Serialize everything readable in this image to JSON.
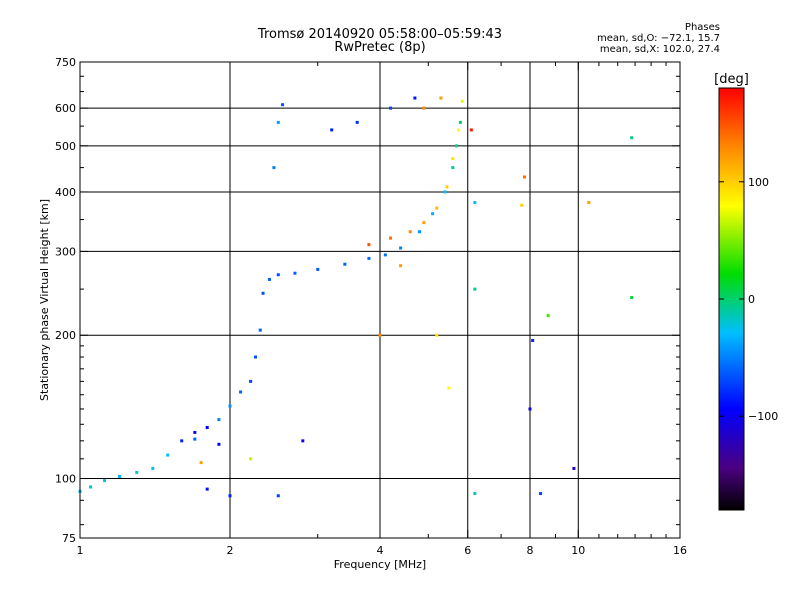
{
  "header": {
    "title": "Tromsø 20140920 05:58:00–05:59:43",
    "subtitle": "RwPretec (8p)"
  },
  "stats": {
    "heading": "Phases",
    "line_o": "mean, sd,O: −72.1, 15.7",
    "line_x": "mean, sd,X: 102.0, 27.4"
  },
  "colorbar": {
    "unit_label": "[deg]",
    "min": -180,
    "max": 180,
    "ticks": [
      {
        "value": 100,
        "label": "100"
      },
      {
        "value": 0,
        "label": "0"
      },
      {
        "value": -100,
        "label": "−100"
      }
    ]
  },
  "chart_data": {
    "type": "scatter",
    "xlabel": "Frequency [MHz]",
    "ylabel": "Stationary phase Virtual Height [km]",
    "xscale": "log",
    "yscale": "log",
    "xlim": [
      1,
      16
    ],
    "ylim": [
      75,
      750
    ],
    "xticks": [
      {
        "value": 1,
        "label": "1"
      },
      {
        "value": 2,
        "label": "2"
      },
      {
        "value": 4,
        "label": "4"
      },
      {
        "value": 6,
        "label": "6"
      },
      {
        "value": 8,
        "label": "8"
      },
      {
        "value": 10,
        "label": "10"
      },
      {
        "value": 16,
        "label": "16"
      }
    ],
    "yticks": [
      {
        "value": 75,
        "label": "75"
      },
      {
        "value": 100,
        "label": "100"
      },
      {
        "value": 200,
        "label": "200"
      },
      {
        "value": 300,
        "label": "300"
      },
      {
        "value": 400,
        "label": "400"
      },
      {
        "value": 500,
        "label": "500"
      },
      {
        "value": 600,
        "label": "600"
      },
      {
        "value": 750,
        "label": "750"
      }
    ],
    "grid": true,
    "color_dimension": "phase [deg]",
    "series": [
      {
        "mode": "O",
        "points": [
          [
            1.0,
            94,
            -40
          ],
          [
            1.05,
            96,
            -30
          ],
          [
            1.12,
            99,
            -35
          ],
          [
            1.2,
            101,
            -45
          ],
          [
            1.3,
            103,
            -30
          ],
          [
            1.4,
            105,
            -40
          ],
          [
            1.5,
            112,
            -40
          ],
          [
            1.6,
            120,
            -90
          ],
          [
            1.7,
            121,
            -70
          ],
          [
            1.8,
            128,
            -100
          ],
          [
            1.9,
            133,
            -60
          ],
          [
            2.0,
            142,
            -55
          ],
          [
            2.1,
            152,
            -70
          ],
          [
            2.2,
            160,
            -80
          ],
          [
            2.25,
            180,
            -75
          ],
          [
            2.3,
            205,
            -70
          ],
          [
            2.33,
            245,
            -75
          ],
          [
            2.4,
            262,
            -70
          ],
          [
            2.5,
            268,
            -75
          ],
          [
            2.7,
            270,
            -70
          ],
          [
            3.0,
            275,
            -72
          ],
          [
            3.4,
            282,
            -70
          ],
          [
            3.8,
            290,
            -68
          ],
          [
            4.1,
            295,
            -65
          ],
          [
            4.4,
            305,
            -60
          ],
          [
            4.8,
            330,
            -55
          ],
          [
            5.1,
            360,
            -45
          ],
          [
            5.4,
            400,
            -40
          ],
          [
            5.6,
            450,
            -25
          ],
          [
            5.7,
            500,
            -20
          ],
          [
            5.8,
            560,
            -15
          ],
          [
            2.45,
            450,
            -60
          ],
          [
            2.5,
            560,
            -50
          ],
          [
            2.55,
            610,
            -75
          ],
          [
            3.2,
            540,
            -90
          ],
          [
            3.6,
            560,
            -85
          ],
          [
            4.2,
            600,
            -80
          ],
          [
            4.7,
            630,
            -95
          ],
          [
            2.0,
            92,
            -90
          ],
          [
            1.8,
            95,
            -95
          ],
          [
            2.5,
            92,
            -80
          ],
          [
            2.8,
            120,
            -110
          ],
          [
            1.7,
            125,
            -105
          ],
          [
            1.9,
            118,
            -100
          ],
          [
            6.2,
            380,
            -40
          ],
          [
            6.2,
            250,
            -20
          ],
          [
            8.1,
            195,
            -90
          ],
          [
            8.4,
            93,
            -80
          ],
          [
            9.8,
            105,
            -120
          ],
          [
            12.8,
            520,
            -20
          ],
          [
            12.8,
            240,
            -10
          ],
          [
            6.2,
            93,
            -30
          ],
          [
            8.0,
            140,
            -110
          ]
        ]
      },
      {
        "mode": "X",
        "points": [
          [
            3.8,
            310,
            150
          ],
          [
            4.2,
            320,
            140
          ],
          [
            4.6,
            330,
            130
          ],
          [
            4.9,
            345,
            120
          ],
          [
            5.2,
            370,
            110
          ],
          [
            5.45,
            410,
            100
          ],
          [
            5.6,
            470,
            90
          ],
          [
            5.75,
            540,
            80
          ],
          [
            5.85,
            620,
            70
          ],
          [
            4.9,
            600,
            130
          ],
          [
            5.3,
            630,
            120
          ],
          [
            1.75,
            108,
            120
          ],
          [
            2.2,
            110,
            60
          ],
          [
            4.4,
            280,
            125
          ],
          [
            5.2,
            200,
            90
          ],
          [
            5.5,
            155,
            80
          ],
          [
            6.1,
            540,
            170
          ],
          [
            7.7,
            375,
            100
          ],
          [
            7.8,
            430,
            140
          ],
          [
            10.5,
            380,
            120
          ],
          [
            8.7,
            220,
            20
          ],
          [
            4.0,
            200,
            130
          ]
        ]
      }
    ]
  }
}
